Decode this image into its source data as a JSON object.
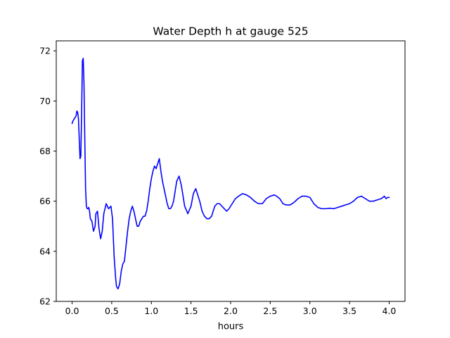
{
  "chart_data": {
    "type": "line",
    "title": "Water Depth h at gauge 525",
    "xlabel": "hours",
    "ylabel": "",
    "xlim": [
      -0.2,
      4.2
    ],
    "ylim": [
      62,
      72.4
    ],
    "xticks": [
      0.0,
      0.5,
      1.0,
      1.5,
      2.0,
      2.5,
      3.0,
      3.5,
      4.0
    ],
    "xtick_labels": [
      "0.0",
      "0.5",
      "1.0",
      "1.5",
      "2.0",
      "2.5",
      "3.0",
      "3.5",
      "4.0"
    ],
    "yticks": [
      62,
      64,
      66,
      68,
      70,
      72
    ],
    "ytick_labels": [
      "62",
      "64",
      "66",
      "68",
      "70",
      "72"
    ],
    "grid": false,
    "legend": "none",
    "series": [
      {
        "color": "#0000ff",
        "x": [
          0.0,
          0.01,
          0.03,
          0.05,
          0.06,
          0.07,
          0.08,
          0.09,
          0.1,
          0.11,
          0.12,
          0.13,
          0.14,
          0.15,
          0.16,
          0.17,
          0.18,
          0.19,
          0.2,
          0.21,
          0.22,
          0.23,
          0.25,
          0.27,
          0.29,
          0.3,
          0.32,
          0.34,
          0.36,
          0.38,
          0.4,
          0.43,
          0.46,
          0.49,
          0.51,
          0.53,
          0.55,
          0.56,
          0.58,
          0.6,
          0.62,
          0.64,
          0.66,
          0.68,
          0.7,
          0.72,
          0.74,
          0.76,
          0.78,
          0.8,
          0.82,
          0.84,
          0.86,
          0.88,
          0.9,
          0.92,
          0.94,
          0.96,
          0.98,
          1.0,
          1.02,
          1.04,
          1.06,
          1.08,
          1.1,
          1.12,
          1.14,
          1.16,
          1.18,
          1.2,
          1.22,
          1.24,
          1.26,
          1.28,
          1.3,
          1.32,
          1.35,
          1.38,
          1.42,
          1.46,
          1.5,
          1.53,
          1.56,
          1.58,
          1.61,
          1.64,
          1.67,
          1.7,
          1.73,
          1.76,
          1.78,
          1.8,
          1.83,
          1.86,
          1.89,
          1.92,
          1.95,
          1.98,
          2.02,
          2.06,
          2.1,
          2.15,
          2.2,
          2.25,
          2.3,
          2.35,
          2.4,
          2.45,
          2.5,
          2.55,
          2.58,
          2.62,
          2.66,
          2.7,
          2.75,
          2.8,
          2.85,
          2.9,
          2.95,
          3.0,
          3.05,
          3.1,
          3.15,
          3.2,
          3.25,
          3.3,
          3.35,
          3.4,
          3.45,
          3.5,
          3.55,
          3.6,
          3.65,
          3.7,
          3.75,
          3.8,
          3.85,
          3.9,
          3.94,
          3.96,
          3.98,
          4.0
        ],
        "y": [
          69.1,
          69.2,
          69.3,
          69.4,
          69.6,
          69.55,
          69.3,
          68.5,
          67.7,
          67.8,
          69.5,
          71.6,
          71.7,
          70.7,
          68.5,
          66.5,
          65.8,
          65.7,
          65.7,
          65.75,
          65.6,
          65.3,
          65.2,
          64.8,
          65.0,
          65.5,
          65.6,
          64.9,
          64.5,
          64.8,
          65.5,
          65.9,
          65.7,
          65.8,
          65.3,
          63.8,
          62.9,
          62.6,
          62.5,
          62.7,
          63.2,
          63.5,
          63.6,
          64.2,
          64.8,
          65.3,
          65.6,
          65.8,
          65.6,
          65.3,
          65.0,
          65.0,
          65.2,
          65.3,
          65.4,
          65.4,
          65.6,
          66.0,
          66.5,
          66.9,
          67.2,
          67.4,
          67.3,
          67.5,
          67.7,
          67.2,
          66.8,
          66.5,
          66.2,
          65.9,
          65.7,
          65.7,
          65.8,
          66.0,
          66.4,
          66.8,
          67.0,
          66.6,
          65.8,
          65.5,
          65.8,
          66.3,
          66.5,
          66.3,
          66.0,
          65.6,
          65.4,
          65.3,
          65.3,
          65.4,
          65.6,
          65.8,
          65.9,
          65.9,
          65.8,
          65.7,
          65.6,
          65.7,
          65.9,
          66.1,
          66.2,
          66.3,
          66.25,
          66.15,
          66.0,
          65.9,
          65.9,
          66.1,
          66.2,
          66.25,
          66.2,
          66.1,
          65.9,
          65.85,
          65.85,
          65.95,
          66.1,
          66.2,
          66.2,
          66.15,
          65.9,
          65.75,
          65.7,
          65.7,
          65.72,
          65.7,
          65.75,
          65.8,
          65.85,
          65.9,
          66.0,
          66.15,
          66.2,
          66.1,
          66.0,
          66.0,
          66.05,
          66.1,
          66.2,
          66.1,
          66.15,
          66.15
        ]
      }
    ]
  }
}
